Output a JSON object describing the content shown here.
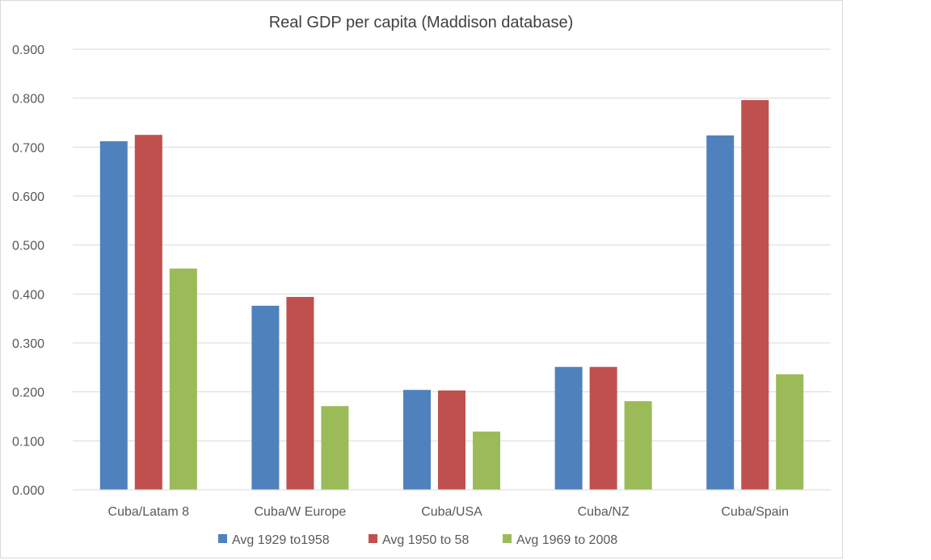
{
  "chart_data": {
    "type": "bar",
    "title": "Real GDP per capita (Maddison database)",
    "xlabel": "",
    "ylabel": "",
    "ylim": [
      0,
      0.9
    ],
    "yticks": [
      "0.000",
      "0.100",
      "0.200",
      "0.300",
      "0.400",
      "0.500",
      "0.600",
      "0.700",
      "0.800",
      "0.900"
    ],
    "grid": true,
    "legend_position": "bottom",
    "categories": [
      "Cuba/Latam 8",
      "Cuba/W Europe",
      "Cuba/USA",
      "Cuba/NZ",
      "Cuba/Spain"
    ],
    "series": [
      {
        "name": "Avg 1929 to1958",
        "color": "#4f81bd",
        "values": [
          0.712,
          0.376,
          0.204,
          0.251,
          0.724
        ]
      },
      {
        "name": "Avg 1950 to 58",
        "color": "#c0504d",
        "values": [
          0.725,
          0.394,
          0.203,
          0.251,
          0.796
        ]
      },
      {
        "name": "Avg 1969 to 2008",
        "color": "#9bbb59",
        "values": [
          0.452,
          0.171,
          0.119,
          0.181,
          0.236
        ]
      }
    ]
  }
}
